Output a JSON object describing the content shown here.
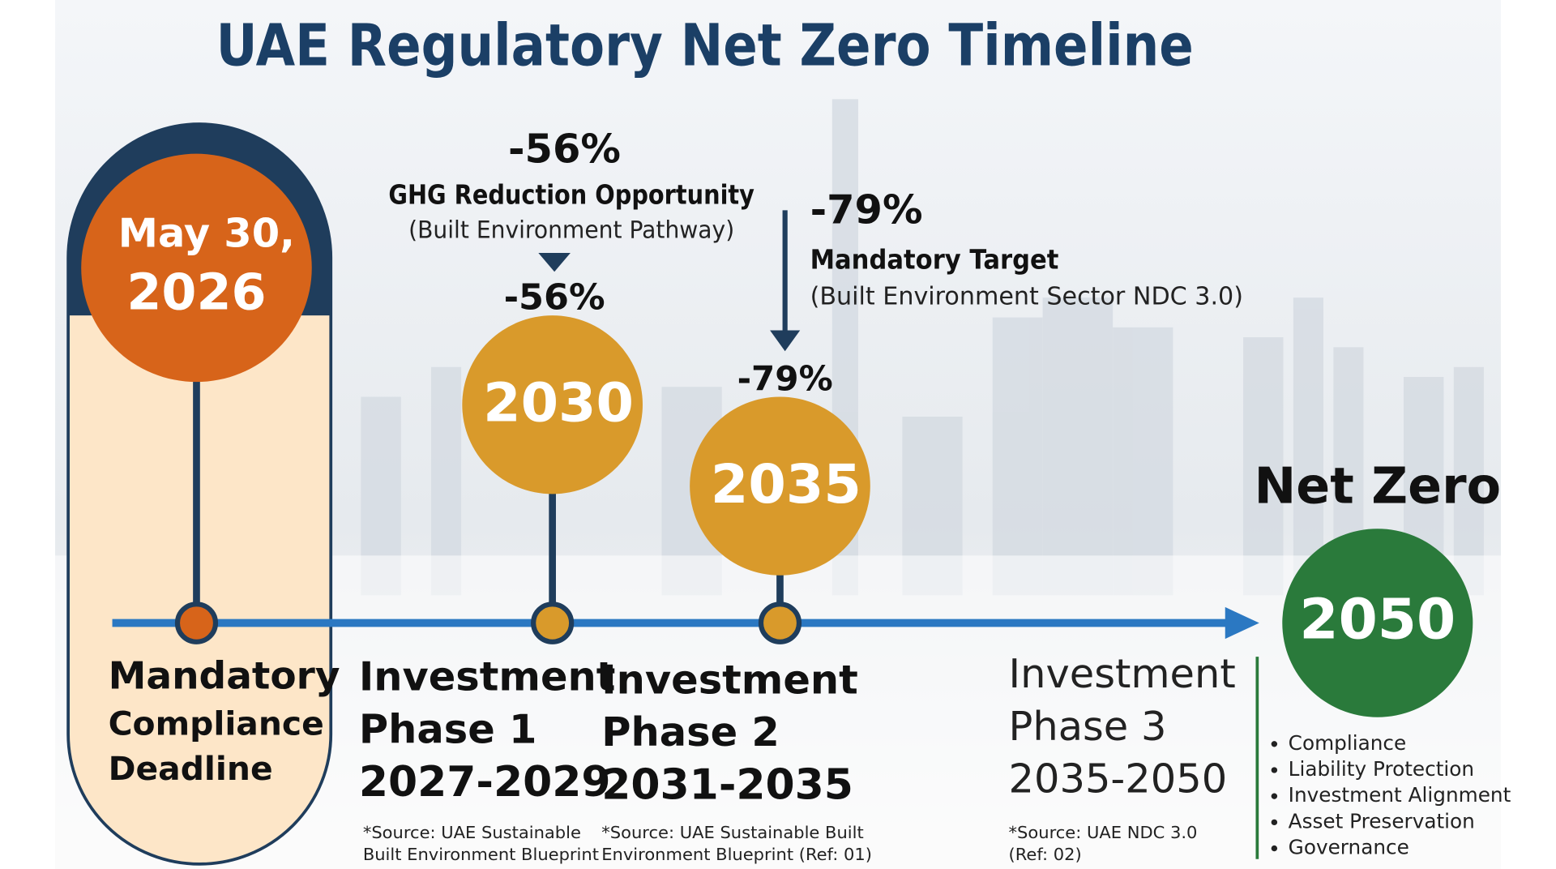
{
  "title": "UAE Regulatory Net Zero Timeline",
  "milestones": [
    {
      "date": "May 30,",
      "year": "2026",
      "caption": [
        "Mandatory",
        "Compliance",
        "Deadline"
      ]
    },
    {
      "percent": "-56%",
      "year": "2030",
      "caption": [
        "Investment",
        "Phase 1",
        "2027-2029"
      ],
      "source": [
        "*Source: UAE Sustainable",
        "Built Environment Blueprint"
      ]
    },
    {
      "percent": "-79%",
      "year": "2035",
      "caption": [
        "Investment",
        "Phase 2",
        "2031-2035"
      ],
      "source": [
        "*Source: UAE Sustainable Built",
        "Environment Blueprint (Ref: 01)"
      ]
    }
  ],
  "callouts": [
    {
      "percent": "-56%",
      "title": "GHG Reduction Opportunity",
      "subtitle": "(Built Environment Pathway)"
    },
    {
      "percent": "-79%",
      "title": "Mandatory Target",
      "subtitle": "(Built Environment Sector NDC 3.0)"
    }
  ],
  "phase3": {
    "caption": [
      "Investment",
      "Phase 3",
      "2035-2050"
    ],
    "source": [
      "*Source: UAE NDC 3.0",
      "(Ref: 02)"
    ]
  },
  "net_zero": {
    "heading": "Net Zero",
    "year": "2050",
    "bullets": [
      "Compliance",
      "Liability Protection",
      "Investment Alignment",
      "Asset Preservation",
      "Governance"
    ]
  }
}
